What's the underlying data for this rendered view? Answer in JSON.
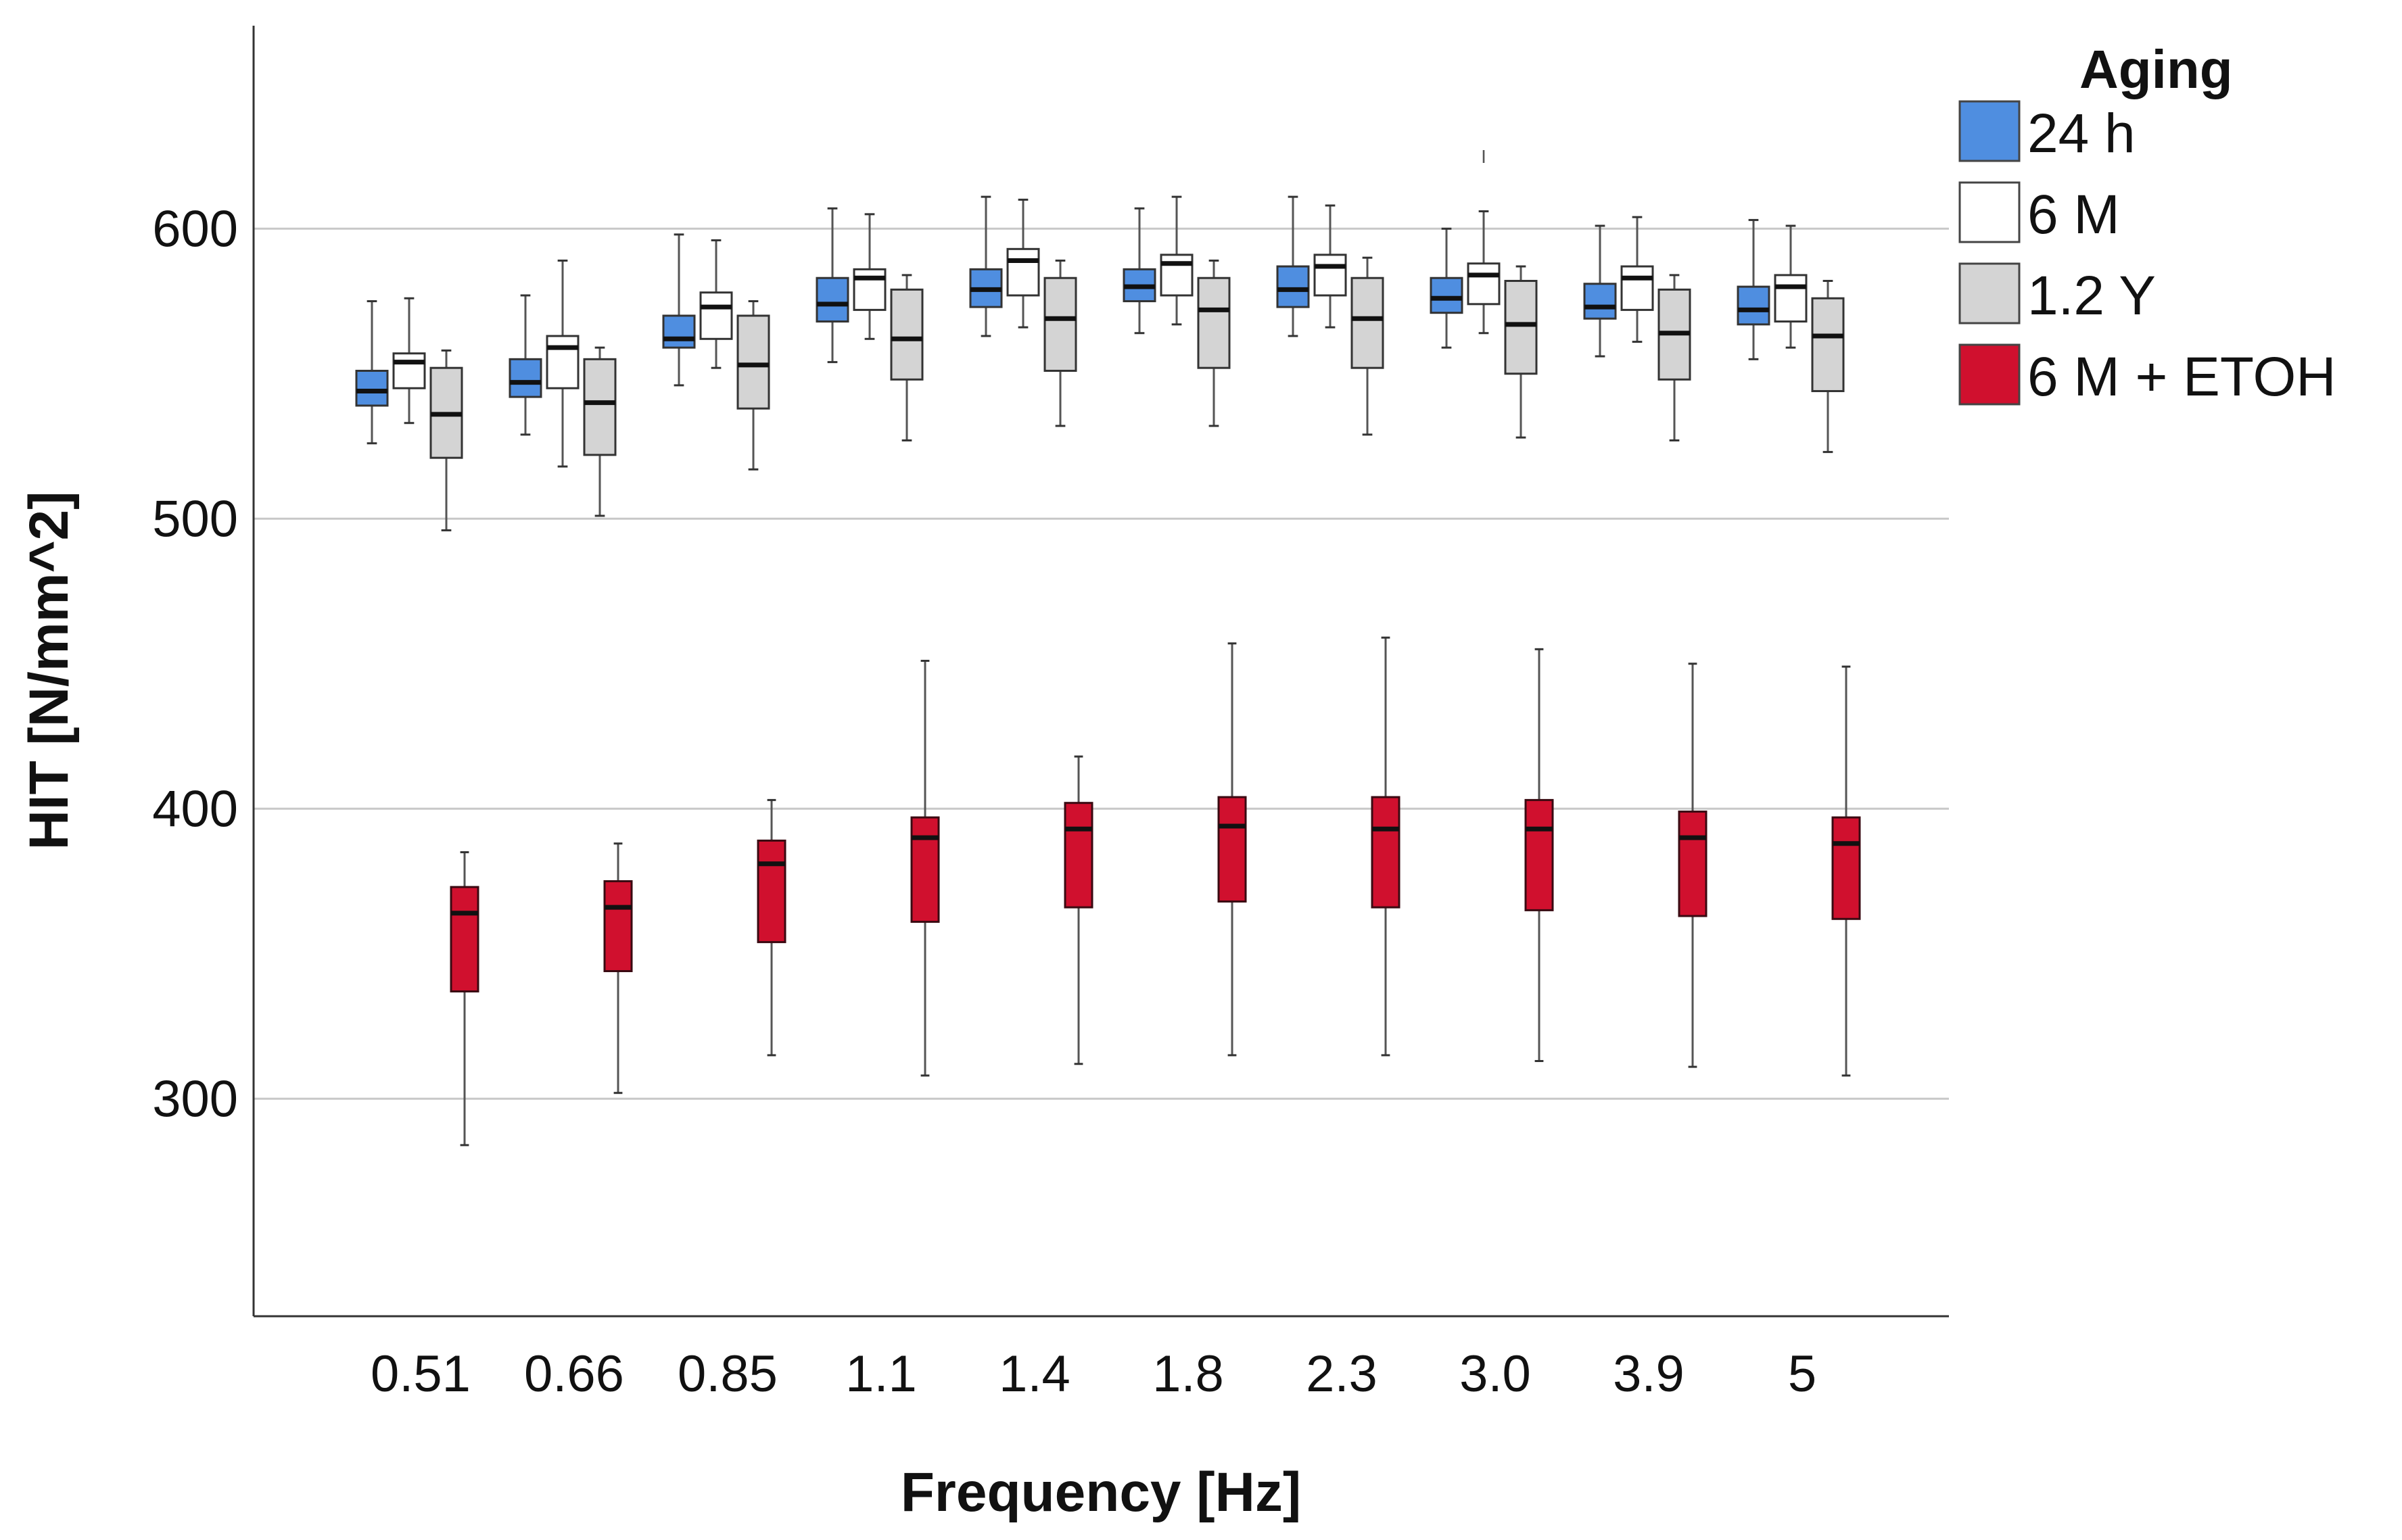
{
  "chart_data": {
    "type": "boxplot",
    "title": "",
    "xlabel": "Frequency [Hz]",
    "ylabel": "HIT [N/mm^2]",
    "ylim": [
      225,
      670
    ],
    "yticks": [
      300,
      400,
      500,
      600
    ],
    "grid": "horizontal",
    "categories": [
      "0.51",
      "0.66",
      "0.85",
      "1.1",
      "1.4",
      "1.8",
      "2.3",
      "3.0",
      "3.9",
      "5"
    ],
    "legend": {
      "title": "Aging",
      "position": "right"
    },
    "series": [
      {
        "name": "24 h",
        "color": "#4f8ee0",
        "boxes": [
          {
            "min": 526,
            "q1": 539,
            "median": 544,
            "q3": 551,
            "max": 575
          },
          {
            "min": 529,
            "q1": 542,
            "median": 547,
            "q3": 555,
            "max": 577
          },
          {
            "min": 546,
            "q1": 559,
            "median": 562,
            "q3": 570,
            "max": 598
          },
          {
            "min": 554,
            "q1": 568,
            "median": 574,
            "q3": 583,
            "max": 607
          },
          {
            "min": 563,
            "q1": 573,
            "median": 579,
            "q3": 586,
            "max": 611
          },
          {
            "min": 564,
            "q1": 575,
            "median": 580,
            "q3": 586,
            "max": 607
          },
          {
            "min": 563,
            "q1": 573,
            "median": 579,
            "q3": 587,
            "max": 611
          },
          {
            "min": 559,
            "q1": 571,
            "median": 576,
            "q3": 583,
            "max": 600
          },
          {
            "min": 556,
            "q1": 569,
            "median": 573,
            "q3": 581,
            "max": 601
          },
          {
            "min": 555,
            "q1": 567,
            "median": 572,
            "q3": 580,
            "max": 603
          }
        ]
      },
      {
        "name": "6 M",
        "color": "#ffffff",
        "boxes": [
          {
            "min": 533,
            "q1": 545,
            "median": 554,
            "q3": 557,
            "max": 576
          },
          {
            "min": 518,
            "q1": 545,
            "median": 559,
            "q3": 563,
            "max": 589
          },
          {
            "min": 552,
            "q1": 562,
            "median": 573,
            "q3": 578,
            "max": 596
          },
          {
            "min": 562,
            "q1": 572,
            "median": 583,
            "q3": 586,
            "max": 605
          },
          {
            "min": 566,
            "q1": 577,
            "median": 589,
            "q3": 593,
            "max": 610
          },
          {
            "min": 567,
            "q1": 577,
            "median": 588,
            "q3": 591,
            "max": 611
          },
          {
            "min": 566,
            "q1": 577,
            "median": 587,
            "q3": 591,
            "max": 608
          },
          {
            "min": 564,
            "q1": 574,
            "median": 584,
            "q3": 588,
            "max": 606
          },
          {
            "min": 561,
            "q1": 572,
            "median": 583,
            "q3": 587,
            "max": 604
          },
          {
            "min": 559,
            "q1": 568,
            "median": 580,
            "q3": 584,
            "max": 601
          }
        ]
      },
      {
        "name": "1.2 Y",
        "color": "#d4d4d4",
        "boxes": [
          {
            "min": 496,
            "q1": 521,
            "median": 536,
            "q3": 552,
            "max": 558
          },
          {
            "min": 501,
            "q1": 522,
            "median": 540,
            "q3": 555,
            "max": 559
          },
          {
            "min": 517,
            "q1": 538,
            "median": 553,
            "q3": 570,
            "max": 575
          },
          {
            "min": 527,
            "q1": 548,
            "median": 562,
            "q3": 579,
            "max": 584
          },
          {
            "min": 532,
            "q1": 551,
            "median": 569,
            "q3": 583,
            "max": 589
          },
          {
            "min": 532,
            "q1": 552,
            "median": 572,
            "q3": 583,
            "max": 589
          },
          {
            "min": 529,
            "q1": 552,
            "median": 569,
            "q3": 583,
            "max": 590
          },
          {
            "min": 528,
            "q1": 550,
            "median": 567,
            "q3": 582,
            "max": 587
          },
          {
            "min": 527,
            "q1": 548,
            "median": 564,
            "q3": 579,
            "max": 584
          },
          {
            "min": 523,
            "q1": 544,
            "median": 563,
            "q3": 576,
            "max": 582
          }
        ],
        "outliers": [
          {
            "category": "3.0",
            "series_offset": "6 M",
            "value": 625
          }
        ]
      },
      {
        "name": "6 M + ETOH",
        "color": "#d0102e",
        "boxes": [
          {
            "min": 284,
            "q1": 337,
            "median": 364,
            "q3": 373,
            "max": 385
          },
          {
            "min": 302,
            "q1": 344,
            "median": 366,
            "q3": 375,
            "max": 388
          },
          {
            "min": 315,
            "q1": 354,
            "median": 381,
            "q3": 389,
            "max": 403
          },
          {
            "min": 308,
            "q1": 361,
            "median": 390,
            "q3": 397,
            "max": 451
          },
          {
            "min": 312,
            "q1": 366,
            "median": 393,
            "q3": 402,
            "max": 418
          },
          {
            "min": 315,
            "q1": 368,
            "median": 394,
            "q3": 404,
            "max": 457
          },
          {
            "min": 315,
            "q1": 366,
            "median": 393,
            "q3": 404,
            "max": 459
          },
          {
            "min": 313,
            "q1": 365,
            "median": 393,
            "q3": 403,
            "max": 455
          },
          {
            "min": 311,
            "q1": 363,
            "median": 390,
            "q3": 399,
            "max": 450
          },
          {
            "min": 308,
            "q1": 362,
            "median": 388,
            "q3": 397,
            "max": 449
          }
        ]
      }
    ]
  }
}
